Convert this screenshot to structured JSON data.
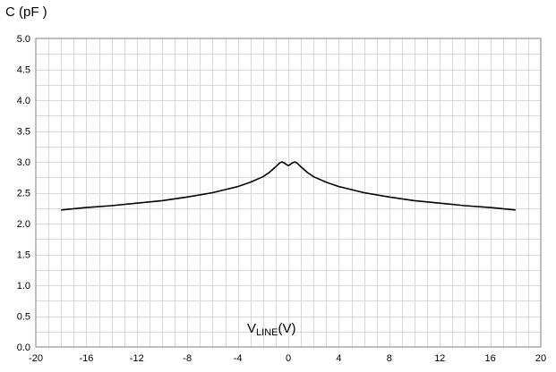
{
  "chart_data": {
    "type": "line",
    "xlabel": {
      "main": "V",
      "sub": "LINE",
      "unit": "(V)"
    },
    "ylabel": "C (pF )",
    "xlim": [
      -20,
      20
    ],
    "ylim": [
      0,
      5
    ],
    "x_ticks": [
      "-20",
      "-16",
      "-12",
      "-8",
      "-4",
      "0",
      "4",
      "8",
      "12",
      "16",
      "20"
    ],
    "y_ticks": [
      "0.0",
      "0.5",
      "1.0",
      "1.5",
      "2.0",
      "2.5",
      "3.0",
      "3.5",
      "4.0",
      "4.5",
      "5.0"
    ],
    "grid": true,
    "legend": "none",
    "color": "#000000",
    "series": [
      {
        "x": [
          -18,
          -16,
          -14,
          -12,
          -10,
          -8,
          -6,
          -4,
          -3,
          -2,
          -1.5,
          -1,
          -0.7,
          -0.5,
          -0.3,
          -0.1,
          0,
          0.1,
          0.3,
          0.5,
          0.7,
          1,
          1.5,
          2,
          3,
          4,
          6,
          8,
          10,
          12,
          14,
          16,
          18
        ],
        "y": [
          2.22,
          2.26,
          2.29,
          2.33,
          2.37,
          2.43,
          2.5,
          2.6,
          2.67,
          2.76,
          2.83,
          2.92,
          2.98,
          3.0,
          2.98,
          2.95,
          2.94,
          2.95,
          2.98,
          3.0,
          2.98,
          2.92,
          2.83,
          2.76,
          2.67,
          2.6,
          2.5,
          2.43,
          2.37,
          2.33,
          2.29,
          2.26,
          2.22
        ]
      }
    ]
  }
}
